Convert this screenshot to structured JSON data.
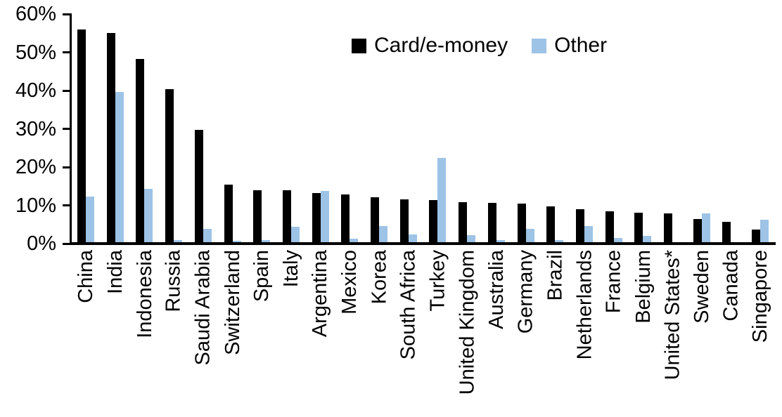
{
  "chart_data": {
    "type": "bar",
    "title": "",
    "xlabel": "",
    "ylabel": "",
    "ylim": [
      0,
      60
    ],
    "yticks": [
      0,
      10,
      20,
      30,
      40,
      50,
      60
    ],
    "ytick_suffix": "%",
    "grid": false,
    "legend_position": "top-center",
    "categories": [
      "China",
      "India",
      "Indonesia",
      "Russia",
      "Saudi Arabia",
      "Switzerland",
      "Spain",
      "Italy",
      "Argentina",
      "Mexico",
      "Korea",
      "South Africa",
      "Turkey",
      "United Kingdom",
      "Australia",
      "Germany",
      "Brazil",
      "Netherlands",
      "France",
      "Belgium",
      "United States*",
      "Sweden",
      "Canada",
      "Singapore"
    ],
    "series": [
      {
        "name": "Card/e-money",
        "color": "#000000",
        "values": [
          56.0,
          55.0,
          48.2,
          40.4,
          29.8,
          15.5,
          14.0,
          13.9,
          13.3,
          12.8,
          12.1,
          11.6,
          11.4,
          10.9,
          10.6,
          10.4,
          9.8,
          9.0,
          8.5,
          8.0,
          7.8,
          6.4,
          5.7,
          3.6
        ]
      },
      {
        "name": "Other",
        "color": "#9DC3E6",
        "values": [
          12.3,
          39.6,
          14.4,
          1.0,
          3.8,
          0.8,
          1.0,
          4.4,
          13.7,
          1.2,
          4.5,
          2.3,
          22.4,
          2.2,
          1.0,
          3.8,
          1.0,
          4.6,
          1.4,
          2.0,
          0.3,
          7.8,
          0.0,
          6.3
        ]
      }
    ]
  }
}
